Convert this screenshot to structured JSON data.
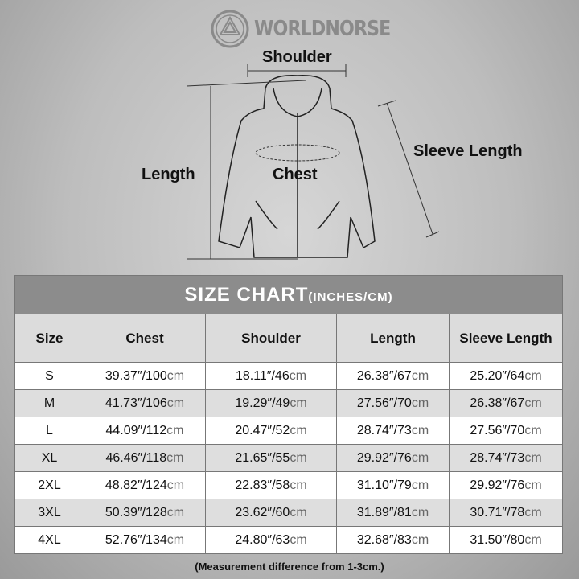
{
  "brand": "WORLDNORSE",
  "diagram": {
    "shoulder": "Shoulder",
    "length": "Length",
    "chest": "Chest",
    "sleeve": "Sleeve Length"
  },
  "table": {
    "title": "SIZE CHART",
    "title_units": "(INCHES/CM)",
    "headers": [
      "Size",
      "Chest",
      "Shoulder",
      "Length",
      "Sleeve Length"
    ],
    "rows": [
      [
        "S",
        "39.37″/100",
        "18.11″/46",
        "26.38″/67",
        "25.20″/64"
      ],
      [
        "M",
        "41.73″/106",
        "19.29″/49",
        "27.56″/70",
        "26.38″/67"
      ],
      [
        "L",
        "44.09″/112",
        "20.47″/52",
        "28.74″/73",
        "27.56″/70"
      ],
      [
        "XL",
        "46.46″/118",
        "21.65″/55",
        "29.92″/76",
        "28.74″/73"
      ],
      [
        "2XL",
        "48.82″/124",
        "22.83″/58",
        "31.10″/79",
        "29.92″/76"
      ],
      [
        "3XL",
        "50.39″/128",
        "23.62″/60",
        "31.89″/81",
        "30.71″/78"
      ],
      [
        "4XL",
        "52.76″/134",
        "24.80″/63",
        "32.68″/83",
        "31.50″/80"
      ]
    ],
    "unit": "cm"
  },
  "note": "(Measurement difference from 1-3cm.)"
}
